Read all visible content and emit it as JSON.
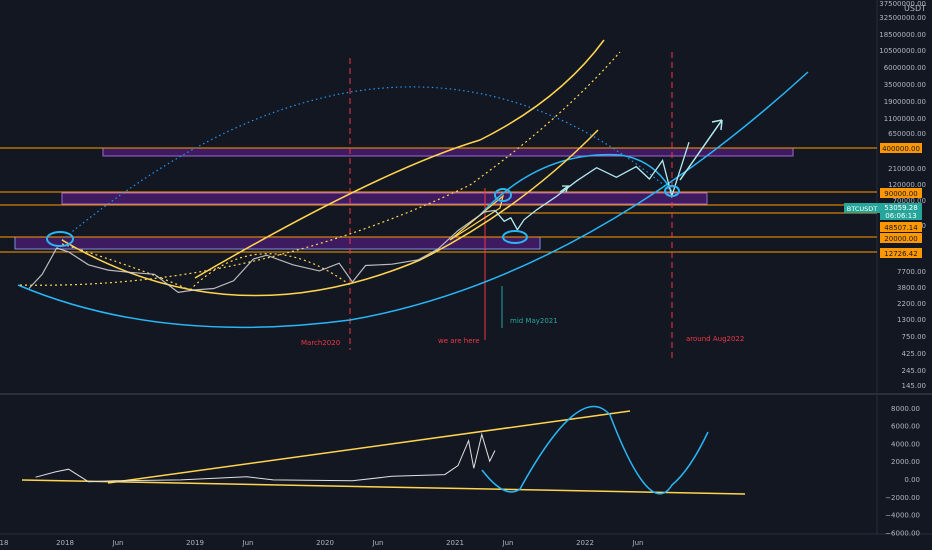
{
  "chart_data": {
    "type": "line",
    "symbol": "BTCUSDT",
    "currency": "USDT",
    "price_scale": "log",
    "price_ticks": [
      "37500000.00",
      "32500000.00",
      "18500000.00",
      "10500000.00",
      "6000000.00",
      "3500000.00",
      "1900000.00",
      "1100000.00",
      "650000.00",
      "210000.00",
      "120000.00",
      "70000.00",
      "25000.00",
      "7700.00",
      "3800.00",
      "2200.00",
      "1300.00",
      "750.00",
      "425.00",
      "245.00",
      "145.00"
    ],
    "price_labels": [
      {
        "text": "400000.00",
        "color": "#ff9800",
        "value": 400000
      },
      {
        "text": "90000.00",
        "color": "#ff9800",
        "value": 90000
      },
      {
        "text": "53059.28",
        "color": "#26a69a",
        "value": 53059.28
      },
      {
        "text": "06:06:13",
        "color": "#26a69a"
      },
      {
        "text": "48507.14",
        "color": "#ff9800",
        "value": 48507.14
      },
      {
        "text": "20000.00",
        "color": "#ff9800",
        "value": 20000
      },
      {
        "text": "12726.42",
        "color": "#ff9800",
        "value": 12726.42
      }
    ],
    "symbol_tag": "BTCUSDT",
    "indicator_ticks": [
      "8000.00",
      "6000.00",
      "4000.00",
      "2000.00",
      "0.00",
      "−2000.00",
      "−4000.00",
      "−6000.00"
    ],
    "time_ticks": [
      "18",
      "2018",
      "Jun",
      "2019",
      "Jun",
      "2020",
      "Jun",
      "2021",
      "Jun",
      "2022",
      "Jun"
    ],
    "annotations": [
      "March2020",
      "we are here",
      "mid May2021",
      "around Aug2022"
    ],
    "zones": [
      {
        "range": [
          270000,
          420000
        ],
        "color": "#7b2fbe"
      },
      {
        "range": [
          60000,
          90000
        ],
        "color": "#7b2fbe"
      },
      {
        "range": [
          12726.42,
          20000
        ],
        "color": "#7b2fbe"
      }
    ],
    "price_series": {
      "note_units": "USDT, approximate",
      "t": [
        2017.75,
        2017.85,
        2017.96,
        2018.05,
        2018.2,
        2018.35,
        2018.5,
        2018.7,
        2018.88,
        2019.0,
        2019.15,
        2019.3,
        2019.45,
        2019.55,
        2019.75,
        2019.95,
        2020.1,
        2020.2,
        2020.3,
        2020.5,
        2020.7,
        2020.85,
        2021.0,
        2021.1,
        2021.2,
        2021.28
      ],
      "v": [
        4000,
        6500,
        16000,
        14000,
        9000,
        7500,
        7000,
        6500,
        3500,
        3800,
        4000,
        5200,
        11000,
        12500,
        9000,
        7300,
        9500,
        5000,
        8800,
        9200,
        10700,
        15500,
        29000,
        40000,
        55000,
        58000
      ]
    },
    "projection_series": {
      "t": [
        2021.28,
        2021.35,
        2021.4,
        2021.45,
        2021.5,
        2021.6,
        2021.75,
        2021.9,
        2022.05,
        2022.2,
        2022.35,
        2022.45,
        2022.55,
        2022.62,
        2022.75
      ],
      "v": [
        58000,
        40000,
        45000,
        30000,
        42000,
        60000,
        95000,
        160000,
        250000,
        180000,
        260000,
        170000,
        320000,
        95000,
        600000
      ]
    },
    "indicator_series": {
      "t": [
        2017.8,
        2017.95,
        2018.05,
        2018.2,
        2018.4,
        2018.9,
        2019.4,
        2019.6,
        2020.2,
        2020.5,
        2020.9,
        2021.0,
        2021.08,
        2021.12,
        2021.18,
        2021.24,
        2021.28
      ],
      "v": [
        200,
        800,
        1100,
        -300,
        -200,
        -100,
        250,
        -100,
        -200,
        300,
        500,
        1500,
        4300,
        1200,
        5000,
        2000,
        3200
      ]
    }
  }
}
